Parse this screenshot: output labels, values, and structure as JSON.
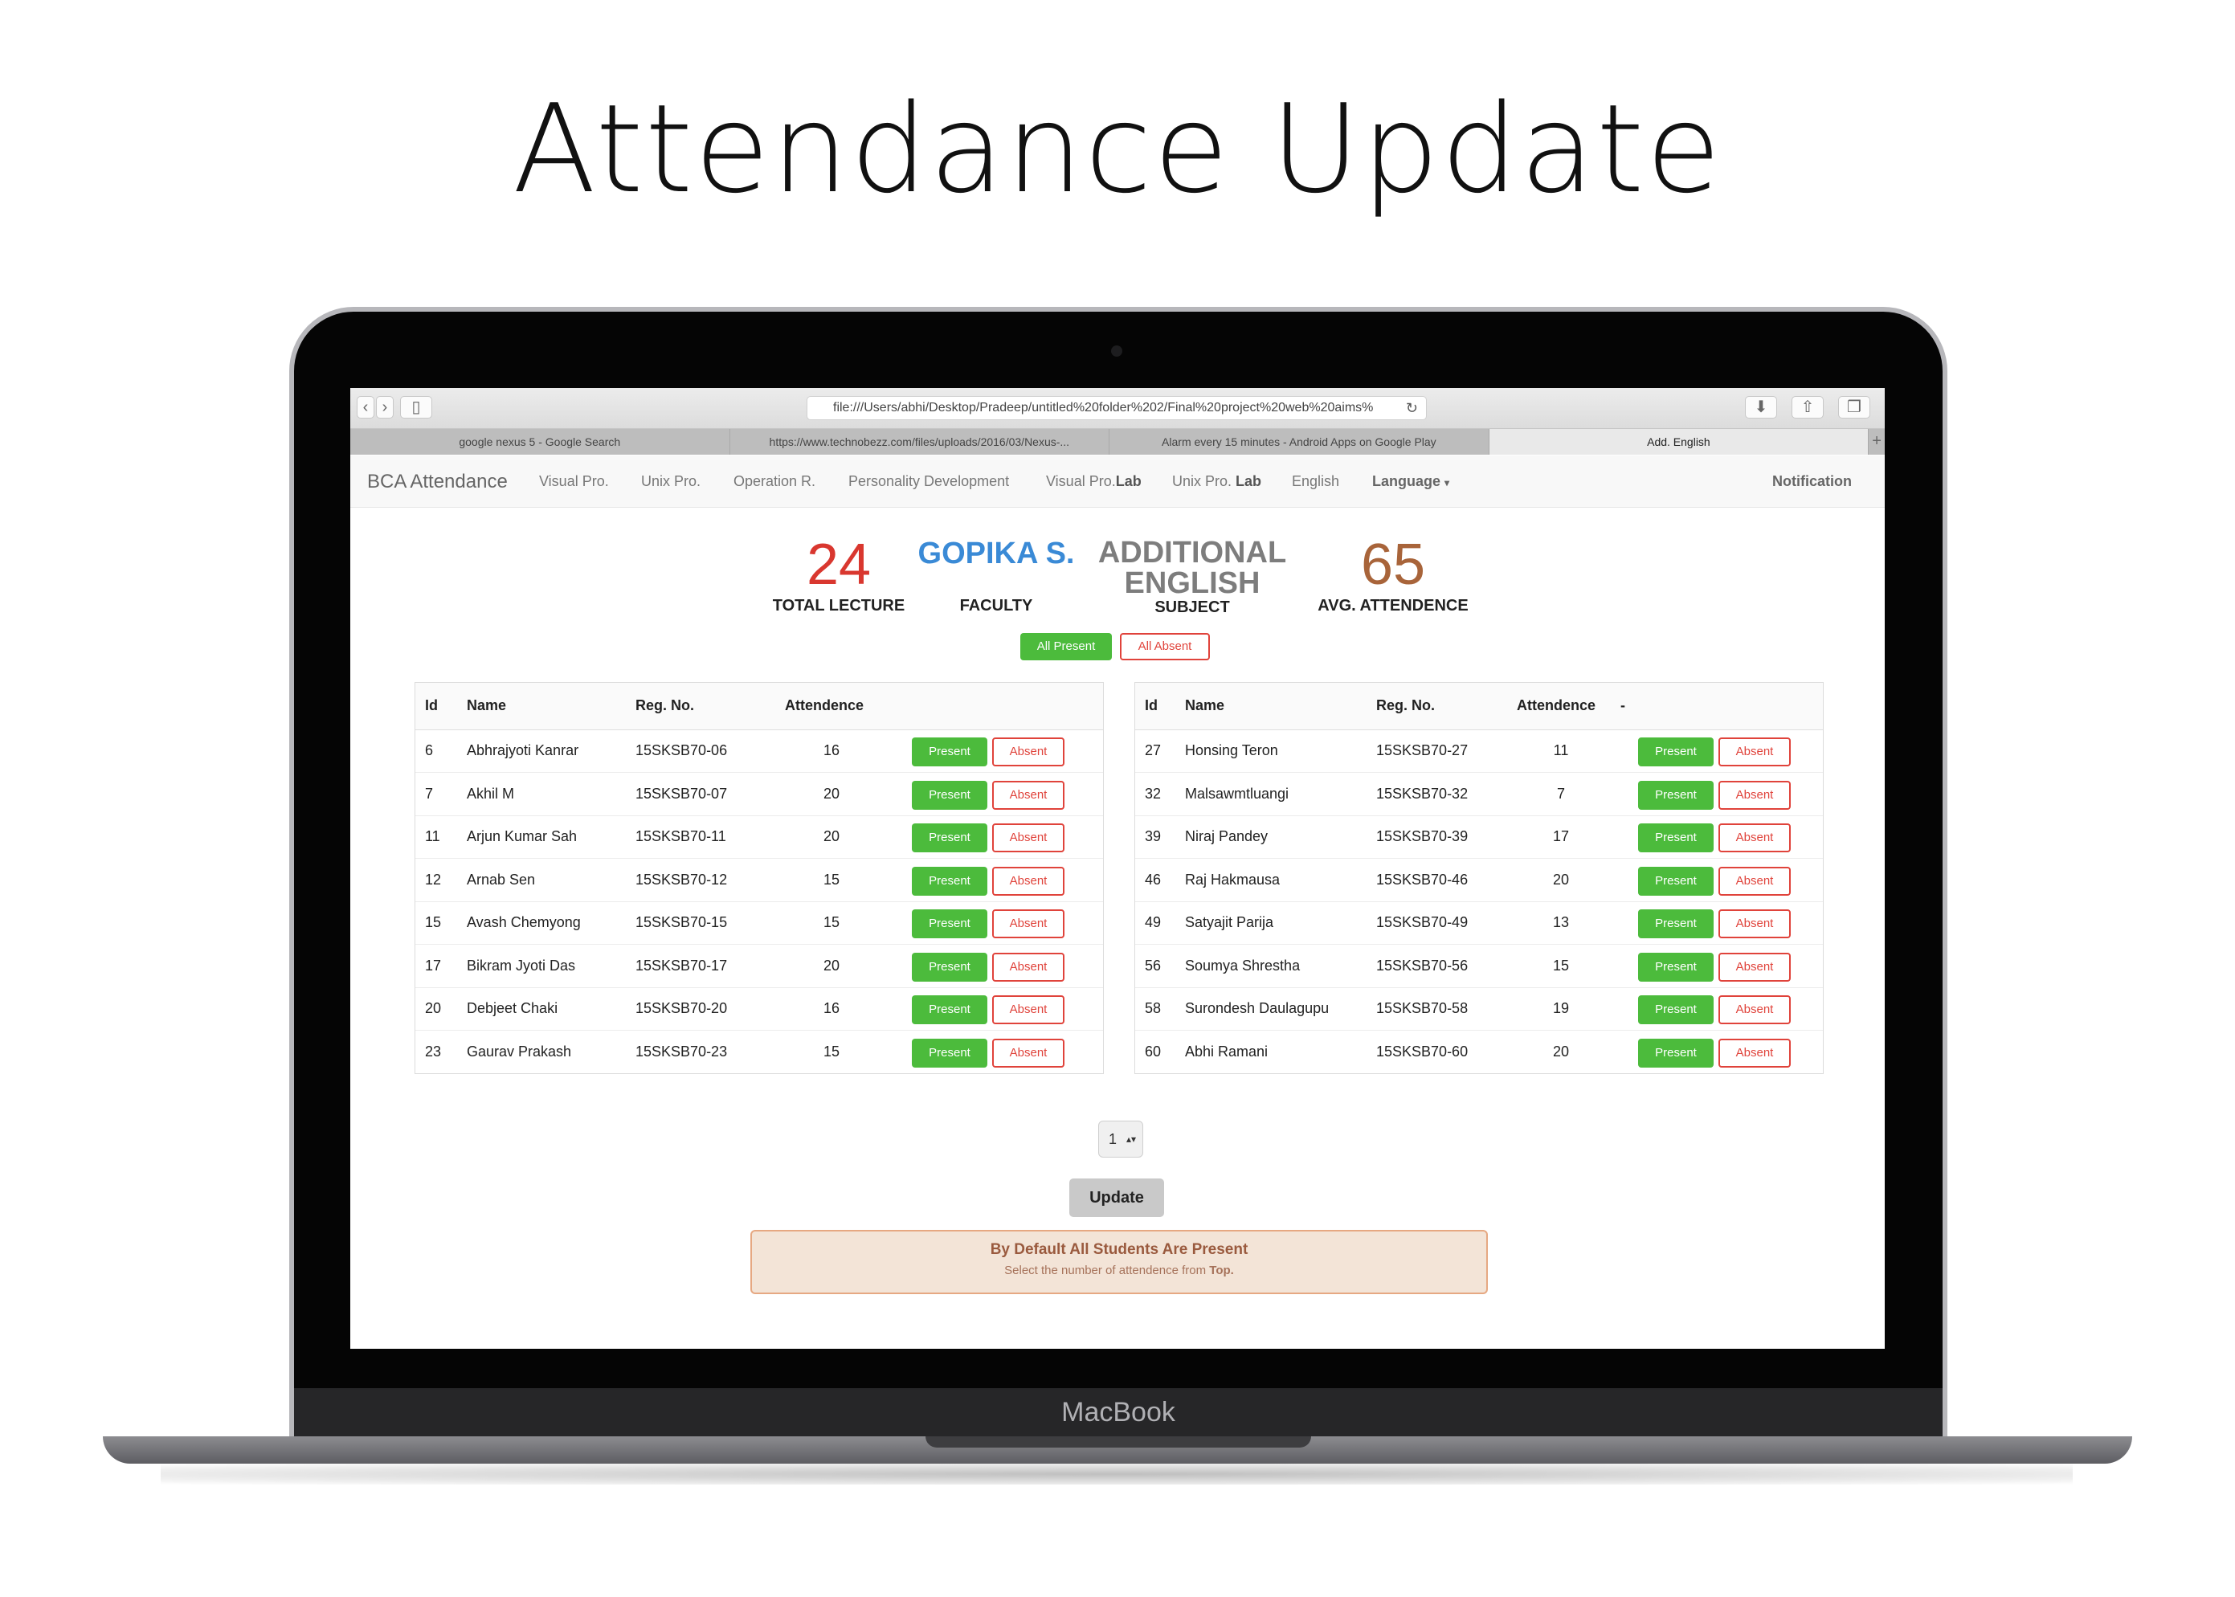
{
  "page": {
    "title": "Attendance Update"
  },
  "laptop": {
    "label": "MacBook"
  },
  "browser": {
    "url": "file:///Users/abhi/Desktop/Pradeep/untitled%20folder%202/Final%20project%20web%20aims%",
    "tabs": [
      {
        "label": "google nexus 5 - Google Search"
      },
      {
        "label": "https://www.technobezz.com/files/uploads/2016/03/Nexus-..."
      },
      {
        "label": "Alarm every 15 minutes - Android Apps on Google Play"
      },
      {
        "label": "Add. English"
      }
    ]
  },
  "navbar": {
    "brand": "BCA Attendance",
    "items": [
      {
        "label": "Visual Pro."
      },
      {
        "label": "Unix Pro."
      },
      {
        "label": "Operation R."
      },
      {
        "label": "Personality Development"
      },
      {
        "label": "Visual Pro.",
        "bold": "Lab"
      },
      {
        "label": "Unix Pro. ",
        "bold": "Lab"
      },
      {
        "label": "English"
      },
      {
        "label": "Language"
      }
    ],
    "notification": "Notification"
  },
  "stats": {
    "total_lecture": {
      "value": "24",
      "label": "TOTAL LECTURE"
    },
    "faculty": {
      "value": "GOPIKA S.",
      "label": "FACULTY"
    },
    "subject": {
      "line1": "ADDITIONAL",
      "line2": "ENGLISH",
      "label": "SUBJECT"
    },
    "avg": {
      "value": "65",
      "label": "AVG. ATTENDENCE"
    }
  },
  "bulk": {
    "all_present": "All Present",
    "all_absent": "All Absent"
  },
  "table": {
    "headers": {
      "id": "Id",
      "name": "Name",
      "reg": "Reg. No.",
      "attendence": "Attendence",
      "dash": "-"
    },
    "present_label": "Present",
    "absent_label": "Absent",
    "left_rows": [
      {
        "id": "6",
        "name": "Abhrajyoti Kanrar",
        "reg": "15SKSB70-06",
        "att": "16"
      },
      {
        "id": "7",
        "name": "Akhil M",
        "reg": "15SKSB70-07",
        "att": "20"
      },
      {
        "id": "11",
        "name": "Arjun Kumar Sah",
        "reg": "15SKSB70-11",
        "att": "20"
      },
      {
        "id": "12",
        "name": "Arnab Sen",
        "reg": "15SKSB70-12",
        "att": "15"
      },
      {
        "id": "15",
        "name": "Avash Chemyong",
        "reg": "15SKSB70-15",
        "att": "15"
      },
      {
        "id": "17",
        "name": "Bikram Jyoti Das",
        "reg": "15SKSB70-17",
        "att": "20"
      },
      {
        "id": "20",
        "name": "Debjeet Chaki",
        "reg": "15SKSB70-20",
        "att": "16"
      },
      {
        "id": "23",
        "name": "Gaurav Prakash",
        "reg": "15SKSB70-23",
        "att": "15"
      }
    ],
    "right_rows": [
      {
        "id": "27",
        "name": "Honsing Teron",
        "reg": "15SKSB70-27",
        "att": "11"
      },
      {
        "id": "32",
        "name": "Malsawmtluangi",
        "reg": "15SKSB70-32",
        "att": "7"
      },
      {
        "id": "39",
        "name": "Niraj Pandey",
        "reg": "15SKSB70-39",
        "att": "17"
      },
      {
        "id": "46",
        "name": "Raj Hakmausa",
        "reg": "15SKSB70-46",
        "att": "20"
      },
      {
        "id": "49",
        "name": "Satyajit Parija",
        "reg": "15SKSB70-49",
        "att": "13"
      },
      {
        "id": "56",
        "name": "Soumya Shrestha",
        "reg": "15SKSB70-56",
        "att": "15"
      },
      {
        "id": "58",
        "name": "Surondesh Daulagupu",
        "reg": "15SKSB70-58",
        "att": "19"
      },
      {
        "id": "60",
        "name": "Abhi Ramani",
        "reg": "15SKSB70-60",
        "att": "20"
      }
    ]
  },
  "form": {
    "select_value": "1",
    "update_label": "Update"
  },
  "alert": {
    "title": "By Default All Students Are Present",
    "subtitle": "Select the number of attendence from ",
    "subtitle_bold": "Top."
  },
  "colors": {
    "total_lecture": "#d9372f",
    "faculty": "#3a8ad6",
    "subject": "#7d7d7d",
    "avg": "#a8643a",
    "present": "#4cbb3c",
    "absent": "#e0433b"
  }
}
